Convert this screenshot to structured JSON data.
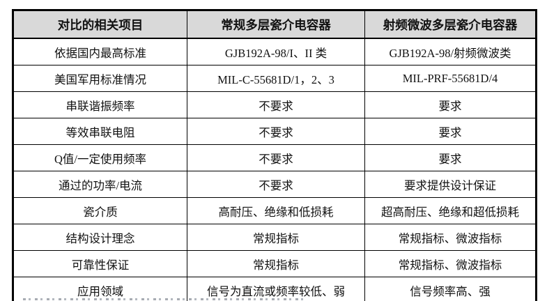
{
  "table": {
    "columns": [
      "对比的相关项目",
      "常规多层瓷介电容器",
      "射频微波多层瓷介电容器"
    ],
    "rows": [
      {
        "item": "依据国内最高标准",
        "conventional": "GJB192A-98/I、II 类",
        "rf_microwave": "GJB192A-98/射频微波类"
      },
      {
        "item": "美国军用标准情况",
        "conventional": "MIL-C-55681D/1，2、3",
        "rf_microwave": "MIL-PRF-55681D/4"
      },
      {
        "item": "串联谐振频率",
        "conventional": "不要求",
        "rf_microwave": "要求"
      },
      {
        "item": "等效串联电阻",
        "conventional": "不要求",
        "rf_microwave": "要求"
      },
      {
        "item": "Q值/一定使用频率",
        "conventional": "不要求",
        "rf_microwave": "要求"
      },
      {
        "item": "通过的功率/电流",
        "conventional": "不要求",
        "rf_microwave": "要求提供设计保证"
      },
      {
        "item": "瓷介质",
        "conventional": "高耐压、绝缘和低损耗",
        "rf_microwave": "超高耐压、绝缘和超低损耗"
      },
      {
        "item": "结构设计理念",
        "conventional": "常规指标",
        "rf_microwave": "常规指标、微波指标"
      },
      {
        "item": "可靠性保证",
        "conventional": "常规指标",
        "rf_microwave": "常规指标、微波指标"
      },
      {
        "item": "应用领域",
        "conventional": "信号为直流或频率较低、弱",
        "rf_microwave": "信号频率高、强"
      }
    ],
    "colors": {
      "header_bg": "#d9d9d9",
      "border": "#000000",
      "text": "#111111"
    }
  }
}
